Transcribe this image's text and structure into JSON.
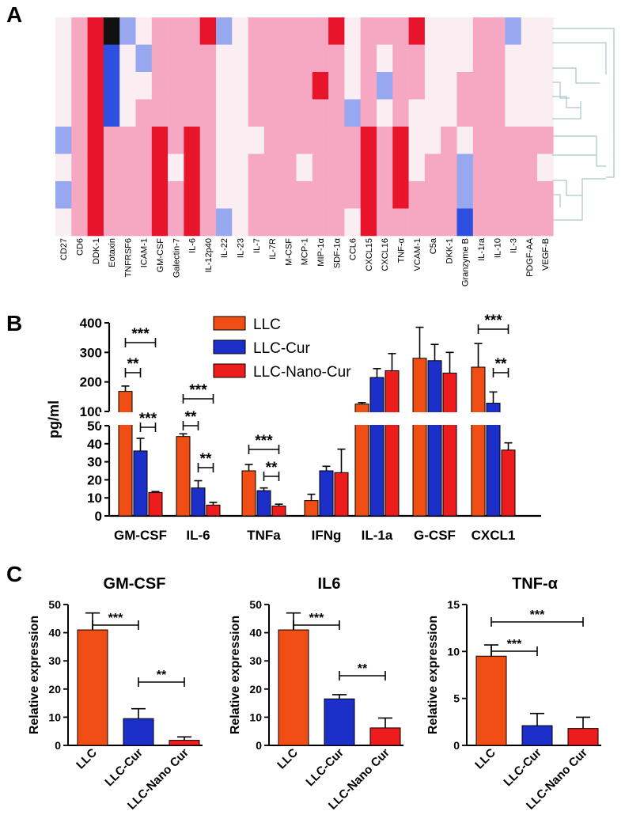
{
  "panels": {
    "A": {
      "letter": "A"
    },
    "B": {
      "letter": "B"
    },
    "C": {
      "letter": "C"
    }
  },
  "colors": {
    "LLC": "#f04e14",
    "LLC-Cur": "#1c2fc8",
    "LLC-Nano-Cur": "#ee1d1d",
    "heat_high": "#e8142c",
    "heat_mid": "#f6a8c2",
    "heat_low": "#2f4fe0",
    "heat_min": "#111111"
  },
  "chart_data": [
    {
      "panel": "A",
      "type": "heatmap",
      "title": "",
      "columns": [
        "CD27",
        "CD6",
        "DDK-1",
        "Eotaxin",
        "TNFRSF6",
        "ICAM-1",
        "GM-CSF",
        "Galectin-7",
        "IL-6",
        "IL-12p40",
        "IL-22",
        "IL-23",
        "IL-7",
        "IL-7R",
        "M-CSF",
        "MCP-1",
        "MIP-1α",
        "SDF-1α",
        "CCL6",
        "CXCL15",
        "CXCL16",
        "TNF-α",
        "VCAM-1",
        "C5a",
        "DKK-1",
        "Granzyme B",
        "IL-1ra",
        "IL-10",
        "IL-3",
        "PDGF-AA",
        "VEGF-B"
      ],
      "row_count": 8,
      "value_scale": "-2 (blue) to 0 (white) to 2 (red), -3 = black",
      "values": [
        [
          0,
          1,
          2,
          -3,
          -1,
          0,
          1,
          1,
          1,
          2,
          -1,
          0,
          1,
          1,
          1,
          1,
          1,
          2,
          0,
          1,
          1,
          1,
          2,
          0,
          0,
          0,
          1,
          1,
          -1,
          0,
          0
        ],
        [
          0,
          1,
          2,
          -2,
          0,
          -1,
          1,
          1,
          1,
          1,
          0,
          0,
          1,
          1,
          1,
          1,
          1,
          1,
          0,
          1,
          0,
          1,
          1,
          0,
          0,
          0,
          1,
          1,
          0,
          0,
          0
        ],
        [
          0,
          1,
          2,
          -2,
          0,
          0,
          1,
          1,
          1,
          1,
          0,
          0,
          1,
          1,
          1,
          1,
          2,
          1,
          0,
          1,
          -1,
          1,
          1,
          0,
          0,
          1,
          1,
          1,
          0,
          0,
          0
        ],
        [
          0,
          1,
          2,
          -2,
          0,
          1,
          1,
          1,
          1,
          1,
          0,
          0,
          1,
          1,
          1,
          1,
          1,
          1,
          -1,
          1,
          0,
          1,
          0,
          0,
          0,
          1,
          1,
          1,
          0,
          0,
          0
        ],
        [
          -1,
          1,
          2,
          1,
          1,
          1,
          2,
          1,
          2,
          1,
          0,
          0,
          0,
          1,
          1,
          1,
          1,
          1,
          1,
          2,
          1,
          2,
          0,
          0,
          1,
          0,
          1,
          1,
          1,
          1,
          1
        ],
        [
          0,
          1,
          2,
          1,
          1,
          1,
          2,
          0,
          2,
          1,
          0,
          0,
          1,
          1,
          1,
          0,
          1,
          1,
          1,
          2,
          1,
          2,
          0,
          1,
          1,
          -1,
          1,
          1,
          1,
          1,
          0
        ],
        [
          -1,
          1,
          2,
          1,
          1,
          1,
          2,
          1,
          2,
          1,
          0,
          0,
          1,
          1,
          1,
          1,
          1,
          1,
          1,
          2,
          1,
          2,
          1,
          1,
          1,
          -1,
          1,
          1,
          1,
          1,
          1
        ],
        [
          0,
          1,
          2,
          1,
          1,
          1,
          2,
          1,
          2,
          1,
          -1,
          0,
          1,
          1,
          1,
          1,
          1,
          1,
          0,
          2,
          1,
          1,
          1,
          1,
          1,
          -2,
          1,
          1,
          1,
          1,
          1
        ]
      ]
    },
    {
      "panel": "B",
      "type": "bar",
      "title": "",
      "xlabel": "",
      "ylabel": "pg/ml",
      "axis_break": {
        "lower_range": [
          0,
          50
        ],
        "upper_range": [
          100,
          400
        ]
      },
      "lower_ticks": [
        "0",
        "10",
        "20",
        "30",
        "40",
        "50"
      ],
      "upper_ticks": [
        "100",
        "200",
        "300",
        "400"
      ],
      "categories": [
        "GM-CSF",
        "IL-6",
        "TNFa",
        "IFNg",
        "IL-1a",
        "G-CSF",
        "CXCL1"
      ],
      "series": [
        {
          "name": "LLC",
          "values": [
            168,
            44,
            25,
            8.5,
            125,
            280,
            250
          ],
          "errors": [
            18,
            1.5,
            3.5,
            3.5,
            5,
            105,
            80
          ]
        },
        {
          "name": "LLC-Cur",
          "values": [
            36,
            15.5,
            14,
            25,
            215,
            272,
            128
          ],
          "errors": [
            7,
            4,
            1.5,
            2.5,
            30,
            55,
            38
          ]
        },
        {
          "name": "LLC-Nano-Cur",
          "values": [
            13,
            6,
            5.5,
            24,
            238,
            230,
            36.5
          ],
          "errors": [
            0.5,
            1.5,
            1,
            13,
            58,
            70,
            4
          ]
        }
      ],
      "annotations": [
        "***",
        "**",
        "***",
        "***",
        "**",
        "**",
        "***",
        "**",
        "***",
        "**"
      ]
    },
    {
      "panel": "C1",
      "type": "bar",
      "title": "GM-CSF",
      "xlabel": "",
      "ylabel": "Relative expression",
      "ylim": [
        0,
        50
      ],
      "yticks": [
        "0",
        "10",
        "20",
        "30",
        "40",
        "50"
      ],
      "categories": [
        "LLC",
        "LLC-Cur",
        "LLC-Nano Cur"
      ],
      "values": [
        41,
        9.5,
        1.8
      ],
      "errors": [
        6,
        3.5,
        1.2
      ],
      "annotations": [
        "***",
        "**"
      ]
    },
    {
      "panel": "C2",
      "type": "bar",
      "title": "IL6",
      "xlabel": "",
      "ylabel": "Relative expression",
      "ylim": [
        0,
        50
      ],
      "yticks": [
        "0",
        "10",
        "20",
        "30",
        "40",
        "50"
      ],
      "categories": [
        "LLC",
        "LLC-Cur",
        "LLC-Nano Cur"
      ],
      "values": [
        41,
        16.5,
        6.2
      ],
      "errors": [
        6,
        1.5,
        3.5
      ],
      "annotations": [
        "***",
        "**"
      ]
    },
    {
      "panel": "C3",
      "type": "bar",
      "title": "TNF-α",
      "xlabel": "",
      "ylabel": "Relative expression",
      "ylim": [
        0,
        15
      ],
      "yticks": [
        "0",
        "5",
        "10",
        "15"
      ],
      "categories": [
        "LLC",
        "LLC-Cur",
        "LLC-Nano Cur"
      ],
      "values": [
        9.5,
        2.1,
        1.8
      ],
      "errors": [
        1.2,
        1.3,
        1.2
      ],
      "annotations": [
        "***",
        "***"
      ]
    }
  ]
}
